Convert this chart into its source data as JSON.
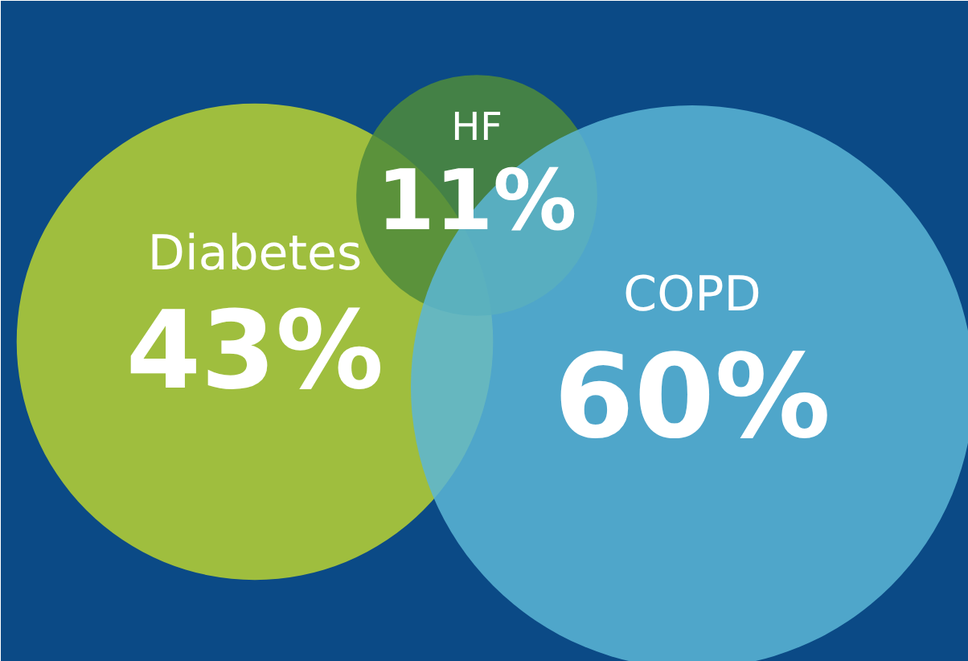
{
  "chart_data": {
    "type": "other",
    "categories": [
      "Diabetes",
      "HF",
      "COPD"
    ],
    "values": [
      43,
      11,
      60
    ],
    "value_labels": [
      "43%",
      "11%",
      "60%"
    ],
    "colors": [
      "#a8c43a",
      "#4f8b3b",
      "#5cb6d6"
    ]
  }
}
